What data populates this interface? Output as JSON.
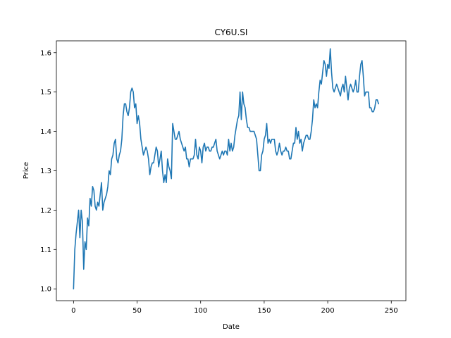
{
  "chart_data": {
    "type": "line",
    "title": "CY6U.SI",
    "xlabel": "Date",
    "ylabel": "Price",
    "xlim": [
      -13.5,
      261.5
    ],
    "ylim": [
      0.97,
      1.63
    ],
    "xticks": [
      0,
      50,
      100,
      150,
      200,
      250
    ],
    "yticks": [
      1.0,
      1.1,
      1.2,
      1.3,
      1.4,
      1.5,
      1.6
    ],
    "ytick_labels": [
      "1.0",
      "1.1",
      "1.2",
      "1.3",
      "1.4",
      "1.5",
      "1.6"
    ],
    "grid": false,
    "series": [
      {
        "color": "#1f77b4",
        "points": [
          [
            0,
            1.0
          ],
          [
            1,
            1.1
          ],
          [
            2,
            1.14
          ],
          [
            3,
            1.17
          ],
          [
            4,
            1.2
          ],
          [
            5,
            1.13
          ],
          [
            6,
            1.2
          ],
          [
            7,
            1.17
          ],
          [
            8,
            1.05
          ],
          [
            9,
            1.12
          ],
          [
            10,
            1.1
          ],
          [
            11,
            1.18
          ],
          [
            12,
            1.16
          ],
          [
            13,
            1.23
          ],
          [
            14,
            1.21
          ],
          [
            15,
            1.26
          ],
          [
            16,
            1.25
          ],
          [
            17,
            1.21
          ],
          [
            18,
            1.2
          ],
          [
            19,
            1.22
          ],
          [
            20,
            1.21
          ],
          [
            21,
            1.24
          ],
          [
            22,
            1.27
          ],
          [
            23,
            1.2
          ],
          [
            24,
            1.22
          ],
          [
            25,
            1.23
          ],
          [
            26,
            1.24
          ],
          [
            27,
            1.26
          ],
          [
            28,
            1.3
          ],
          [
            29,
            1.29
          ],
          [
            30,
            1.33
          ],
          [
            31,
            1.34
          ],
          [
            32,
            1.37
          ],
          [
            33,
            1.38
          ],
          [
            34,
            1.33
          ],
          [
            35,
            1.32
          ],
          [
            36,
            1.34
          ],
          [
            37,
            1.35
          ],
          [
            38,
            1.38
          ],
          [
            39,
            1.44
          ],
          [
            40,
            1.47
          ],
          [
            41,
            1.47
          ],
          [
            42,
            1.45
          ],
          [
            43,
            1.44
          ],
          [
            44,
            1.46
          ],
          [
            45,
            1.5
          ],
          [
            46,
            1.51
          ],
          [
            47,
            1.5
          ],
          [
            48,
            1.46
          ],
          [
            49,
            1.47
          ],
          [
            50,
            1.42
          ],
          [
            51,
            1.44
          ],
          [
            52,
            1.42
          ],
          [
            53,
            1.38
          ],
          [
            54,
            1.36
          ],
          [
            55,
            1.34
          ],
          [
            56,
            1.35
          ],
          [
            57,
            1.36
          ],
          [
            58,
            1.35
          ],
          [
            59,
            1.33
          ],
          [
            60,
            1.29
          ],
          [
            61,
            1.31
          ],
          [
            62,
            1.32
          ],
          [
            63,
            1.32
          ],
          [
            64,
            1.34
          ],
          [
            65,
            1.36
          ],
          [
            66,
            1.35
          ],
          [
            67,
            1.31
          ],
          [
            68,
            1.33
          ],
          [
            69,
            1.35
          ],
          [
            70,
            1.3
          ],
          [
            71,
            1.27
          ],
          [
            72,
            1.29
          ],
          [
            73,
            1.27
          ],
          [
            74,
            1.33
          ],
          [
            75,
            1.31
          ],
          [
            76,
            1.3
          ],
          [
            77,
            1.28
          ],
          [
            78,
            1.42
          ],
          [
            79,
            1.4
          ],
          [
            80,
            1.38
          ],
          [
            81,
            1.38
          ],
          [
            82,
            1.39
          ],
          [
            83,
            1.4
          ],
          [
            84,
            1.38
          ],
          [
            85,
            1.37
          ],
          [
            86,
            1.36
          ],
          [
            87,
            1.35
          ],
          [
            88,
            1.36
          ],
          [
            89,
            1.33
          ],
          [
            90,
            1.33
          ],
          [
            91,
            1.31
          ],
          [
            92,
            1.33
          ],
          [
            93,
            1.33
          ],
          [
            94,
            1.33
          ],
          [
            95,
            1.34
          ],
          [
            96,
            1.38
          ],
          [
            97,
            1.34
          ],
          [
            98,
            1.33
          ],
          [
            99,
            1.36
          ],
          [
            100,
            1.35
          ],
          [
            101,
            1.32
          ],
          [
            102,
            1.36
          ],
          [
            103,
            1.37
          ],
          [
            104,
            1.35
          ],
          [
            105,
            1.36
          ],
          [
            106,
            1.36
          ],
          [
            107,
            1.35
          ],
          [
            108,
            1.35
          ],
          [
            109,
            1.36
          ],
          [
            110,
            1.36
          ],
          [
            111,
            1.37
          ],
          [
            112,
            1.38
          ],
          [
            113,
            1.35
          ],
          [
            114,
            1.34
          ],
          [
            115,
            1.33
          ],
          [
            116,
            1.34
          ],
          [
            117,
            1.35
          ],
          [
            118,
            1.34
          ],
          [
            119,
            1.35
          ],
          [
            120,
            1.35
          ],
          [
            121,
            1.34
          ],
          [
            122,
            1.38
          ],
          [
            123,
            1.35
          ],
          [
            124,
            1.37
          ],
          [
            125,
            1.35
          ],
          [
            126,
            1.36
          ],
          [
            127,
            1.39
          ],
          [
            128,
            1.41
          ],
          [
            129,
            1.43
          ],
          [
            130,
            1.44
          ],
          [
            131,
            1.5
          ],
          [
            132,
            1.43
          ],
          [
            133,
            1.5
          ],
          [
            134,
            1.47
          ],
          [
            135,
            1.46
          ],
          [
            136,
            1.43
          ],
          [
            137,
            1.41
          ],
          [
            138,
            1.41
          ],
          [
            139,
            1.4
          ],
          [
            140,
            1.4
          ],
          [
            141,
            1.4
          ],
          [
            142,
            1.4
          ],
          [
            143,
            1.39
          ],
          [
            144,
            1.38
          ],
          [
            145,
            1.34
          ],
          [
            146,
            1.3
          ],
          [
            147,
            1.3
          ],
          [
            148,
            1.34
          ],
          [
            149,
            1.35
          ],
          [
            150,
            1.38
          ],
          [
            151,
            1.39
          ],
          [
            152,
            1.42
          ],
          [
            153,
            1.37
          ],
          [
            154,
            1.38
          ],
          [
            155,
            1.37
          ],
          [
            156,
            1.38
          ],
          [
            157,
            1.38
          ],
          [
            158,
            1.38
          ],
          [
            159,
            1.35
          ],
          [
            160,
            1.34
          ],
          [
            161,
            1.35
          ],
          [
            162,
            1.37
          ],
          [
            163,
            1.35
          ],
          [
            164,
            1.34
          ],
          [
            165,
            1.35
          ],
          [
            166,
            1.35
          ],
          [
            167,
            1.36
          ],
          [
            168,
            1.35
          ],
          [
            169,
            1.35
          ],
          [
            170,
            1.33
          ],
          [
            171,
            1.33
          ],
          [
            172,
            1.35
          ],
          [
            173,
            1.37
          ],
          [
            174,
            1.37
          ],
          [
            175,
            1.41
          ],
          [
            176,
            1.38
          ],
          [
            177,
            1.4
          ],
          [
            178,
            1.37
          ],
          [
            179,
            1.38
          ],
          [
            180,
            1.35
          ],
          [
            181,
            1.37
          ],
          [
            182,
            1.38
          ],
          [
            183,
            1.39
          ],
          [
            184,
            1.39
          ],
          [
            185,
            1.38
          ],
          [
            186,
            1.38
          ],
          [
            187,
            1.4
          ],
          [
            188,
            1.43
          ],
          [
            189,
            1.48
          ],
          [
            190,
            1.46
          ],
          [
            191,
            1.47
          ],
          [
            192,
            1.46
          ],
          [
            193,
            1.5
          ],
          [
            194,
            1.53
          ],
          [
            195,
            1.52
          ],
          [
            196,
            1.55
          ],
          [
            197,
            1.58
          ],
          [
            198,
            1.57
          ],
          [
            199,
            1.54
          ],
          [
            200,
            1.57
          ],
          [
            201,
            1.56
          ],
          [
            202,
            1.61
          ],
          [
            203,
            1.55
          ],
          [
            204,
            1.51
          ],
          [
            205,
            1.5
          ],
          [
            206,
            1.51
          ],
          [
            207,
            1.52
          ],
          [
            208,
            1.51
          ],
          [
            209,
            1.5
          ],
          [
            210,
            1.49
          ],
          [
            211,
            1.51
          ],
          [
            212,
            1.52
          ],
          [
            213,
            1.5
          ],
          [
            214,
            1.54
          ],
          [
            215,
            1.51
          ],
          [
            216,
            1.48
          ],
          [
            217,
            1.51
          ],
          [
            218,
            1.52
          ],
          [
            219,
            1.51
          ],
          [
            220,
            1.5
          ],
          [
            221,
            1.51
          ],
          [
            222,
            1.53
          ],
          [
            223,
            1.5
          ],
          [
            224,
            1.5
          ],
          [
            225,
            1.54
          ],
          [
            226,
            1.57
          ],
          [
            227,
            1.58
          ],
          [
            228,
            1.54
          ],
          [
            229,
            1.49
          ],
          [
            230,
            1.5
          ],
          [
            231,
            1.5
          ],
          [
            232,
            1.5
          ],
          [
            233,
            1.46
          ],
          [
            234,
            1.46
          ],
          [
            235,
            1.45
          ],
          [
            236,
            1.45
          ],
          [
            237,
            1.46
          ],
          [
            238,
            1.48
          ],
          [
            239,
            1.48
          ],
          [
            240,
            1.47
          ]
        ]
      }
    ]
  }
}
